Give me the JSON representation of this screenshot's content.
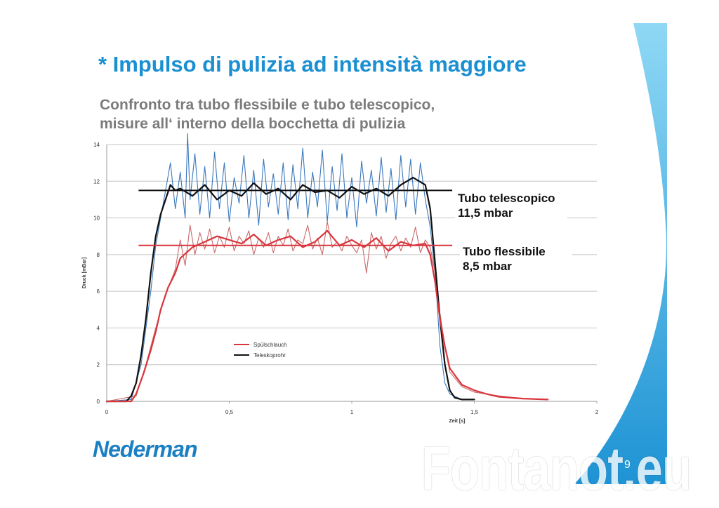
{
  "slide": {
    "title": "* Impulso di pulizia ad intensità maggiore",
    "subtitle_lines": [
      "Confronto tra tubo flessibile e tubo telescopico,",
      "misure all‘ interno della bocchetta di pulizia"
    ],
    "logo_text": "Nederman",
    "watermark_text": "Fontanot.eu",
    "page_number": "9",
    "colors": {
      "title": "#1a8fd1",
      "subtitle": "#7b7b7b",
      "wave_light": "#8fd8f5",
      "wave_dark": "#1e93d4"
    }
  },
  "chart_data": {
    "type": "line",
    "xlabel": "Zeit [s]",
    "ylabel": "Druck [mBar]",
    "xlim": [
      0,
      2
    ],
    "ylim": [
      0,
      14
    ],
    "x_ticks": [
      0,
      0.5,
      1,
      1.5,
      2
    ],
    "x_tick_labels": [
      "0",
      "0,5",
      "1",
      "1,5",
      "2"
    ],
    "y_ticks": [
      0,
      2,
      4,
      6,
      8,
      10,
      12,
      14
    ],
    "y_tick_labels": [
      "0",
      "2",
      "4",
      "6",
      "8",
      "10",
      "12",
      "14"
    ],
    "grid": "horizontal",
    "legend": {
      "placement": "lower-left",
      "entries": [
        {
          "name": "Spülschlauch",
          "color": "#d9353c"
        },
        {
          "name": "Teleskoprohr",
          "color": "#111111"
        }
      ]
    },
    "series": [
      {
        "name": "Teleskoprohr",
        "color": "#111111",
        "smoothed": true,
        "x": [
          0,
          0.08,
          0.1,
          0.12,
          0.14,
          0.16,
          0.18,
          0.2,
          0.22,
          0.24,
          0.26,
          0.28,
          0.3,
          0.35,
          0.4,
          0.45,
          0.5,
          0.55,
          0.6,
          0.65,
          0.7,
          0.75,
          0.8,
          0.85,
          0.9,
          0.95,
          1.0,
          1.05,
          1.1,
          1.15,
          1.2,
          1.25,
          1.3,
          1.32,
          1.34,
          1.36,
          1.38,
          1.4,
          1.42,
          1.45,
          1.5
        ],
        "values": [
          0,
          0,
          0.3,
          1.0,
          2.5,
          4.5,
          7.0,
          9.0,
          10.2,
          11.0,
          11.8,
          11.5,
          11.6,
          11.2,
          11.8,
          11.0,
          11.5,
          11.2,
          11.9,
          11.3,
          11.6,
          11.0,
          11.8,
          11.4,
          11.5,
          11.1,
          11.7,
          11.3,
          11.6,
          11.2,
          11.8,
          12.2,
          11.8,
          10.5,
          7.5,
          4.5,
          2.0,
          0.6,
          0.2,
          0.1,
          0.1
        ]
      },
      {
        "name": "Spülschlauch",
        "color": "#d9353c",
        "smoothed": true,
        "x": [
          0,
          0.1,
          0.12,
          0.15,
          0.18,
          0.2,
          0.22,
          0.25,
          0.28,
          0.3,
          0.35,
          0.4,
          0.45,
          0.5,
          0.55,
          0.6,
          0.65,
          0.7,
          0.75,
          0.8,
          0.85,
          0.9,
          0.95,
          1.0,
          1.05,
          1.1,
          1.15,
          1.2,
          1.25,
          1.3,
          1.32,
          1.34,
          1.36,
          1.38,
          1.4,
          1.45,
          1.5,
          1.55,
          1.6,
          1.7,
          1.8
        ],
        "values": [
          0,
          0,
          0.4,
          1.5,
          2.8,
          3.8,
          5.0,
          6.2,
          7.0,
          7.8,
          8.4,
          8.7,
          9.0,
          8.8,
          8.6,
          9.1,
          8.5,
          8.8,
          9.0,
          8.4,
          8.7,
          9.3,
          8.5,
          8.8,
          8.4,
          8.9,
          8.2,
          8.7,
          8.5,
          8.6,
          8.0,
          6.5,
          4.5,
          3.0,
          1.8,
          0.9,
          0.6,
          0.4,
          0.25,
          0.15,
          0.1
        ]
      },
      {
        "name": "Teleskoprohr",
        "color": "#3a78bd",
        "raw_trace": true,
        "x": [
          0,
          0.1,
          0.14,
          0.18,
          0.2,
          0.22,
          0.24,
          0.26,
          0.28,
          0.3,
          0.32,
          0.33,
          0.34,
          0.36,
          0.38,
          0.4,
          0.42,
          0.44,
          0.46,
          0.48,
          0.5,
          0.52,
          0.54,
          0.56,
          0.58,
          0.6,
          0.62,
          0.64,
          0.66,
          0.68,
          0.7,
          0.72,
          0.74,
          0.76,
          0.78,
          0.8,
          0.82,
          0.84,
          0.86,
          0.88,
          0.9,
          0.92,
          0.94,
          0.96,
          0.98,
          1.0,
          1.02,
          1.04,
          1.06,
          1.08,
          1.1,
          1.12,
          1.14,
          1.16,
          1.18,
          1.2,
          1.22,
          1.24,
          1.26,
          1.28,
          1.3,
          1.32,
          1.34,
          1.36,
          1.38,
          1.4,
          1.45,
          1.5
        ],
        "values": [
          0,
          0.1,
          2.0,
          6.0,
          8.5,
          10.0,
          11.5,
          13.0,
          10.5,
          12.5,
          10.0,
          14.6,
          11.0,
          13.5,
          10.2,
          12.8,
          10.0,
          13.6,
          10.5,
          13.0,
          9.8,
          12.2,
          10.8,
          13.4,
          10.0,
          12.6,
          9.6,
          13.2,
          10.6,
          12.4,
          10.2,
          13.0,
          9.9,
          12.9,
          10.5,
          13.8,
          10.0,
          12.5,
          10.6,
          13.7,
          9.8,
          12.8,
          10.4,
          13.5,
          10.0,
          12.2,
          9.5,
          13.1,
          10.8,
          12.6,
          10.1,
          13.3,
          10.3,
          12.7,
          9.9,
          13.4,
          10.6,
          13.2,
          10.2,
          13.0,
          11.0,
          9.5,
          7.0,
          3.0,
          1.0,
          0.4,
          0.1,
          0.1
        ]
      },
      {
        "name": "Spülschlauch",
        "color": "#c86a6a",
        "raw_trace": true,
        "x": [
          0,
          0.12,
          0.16,
          0.2,
          0.24,
          0.28,
          0.3,
          0.32,
          0.34,
          0.36,
          0.38,
          0.4,
          0.42,
          0.44,
          0.46,
          0.48,
          0.5,
          0.52,
          0.54,
          0.56,
          0.58,
          0.6,
          0.62,
          0.64,
          0.66,
          0.68,
          0.7,
          0.72,
          0.74,
          0.76,
          0.78,
          0.8,
          0.82,
          0.84,
          0.86,
          0.88,
          0.9,
          0.92,
          0.94,
          0.96,
          0.98,
          1.0,
          1.02,
          1.04,
          1.06,
          1.08,
          1.1,
          1.12,
          1.14,
          1.16,
          1.18,
          1.2,
          1.22,
          1.24,
          1.26,
          1.28,
          1.3,
          1.32,
          1.34,
          1.36,
          1.38,
          1.4,
          1.45,
          1.5,
          1.6,
          1.7,
          1.8
        ],
        "values": [
          0,
          0.3,
          2.0,
          4.0,
          5.8,
          7.2,
          8.8,
          7.4,
          9.6,
          8.0,
          9.2,
          8.3,
          9.4,
          8.1,
          9.0,
          8.4,
          9.5,
          8.2,
          9.0,
          8.6,
          9.3,
          8.0,
          8.9,
          8.4,
          9.2,
          8.1,
          9.0,
          8.5,
          9.4,
          8.2,
          8.8,
          8.6,
          9.6,
          8.3,
          8.9,
          8.0,
          9.8,
          8.4,
          8.7,
          8.2,
          9.0,
          8.5,
          8.1,
          8.8,
          7.0,
          9.2,
          8.3,
          9.0,
          7.8,
          8.6,
          9.0,
          8.2,
          8.9,
          8.4,
          9.5,
          8.1,
          8.8,
          8.4,
          7.0,
          4.8,
          3.0,
          1.6,
          0.8,
          0.5,
          0.3,
          0.15,
          0.1
        ]
      }
    ],
    "reference_lines": [
      {
        "value": 11.5,
        "x_range": [
          0.13,
          1.41
        ],
        "color": "#111111",
        "label_lines": [
          "Tubo telescopico",
          "11,5 mbar"
        ]
      },
      {
        "value": 8.5,
        "x_range": [
          0.13,
          1.41
        ],
        "color": "#d9353c",
        "label_lines": [
          "Tubo flessibile",
          "8,5 mbar"
        ]
      }
    ]
  }
}
